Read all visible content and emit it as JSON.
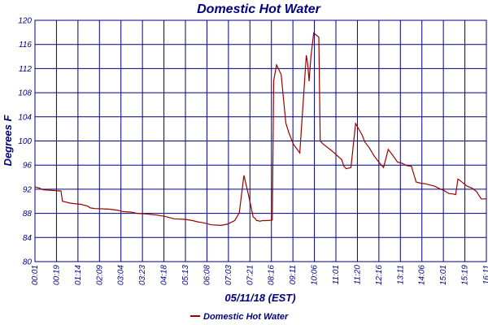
{
  "chart_data": {
    "type": "line",
    "title": "Domestic Hot Water",
    "xlabel": "05/11/18 (EST)",
    "ylabel": "Degrees F",
    "ylim": [
      80,
      120
    ],
    "yticks": [
      80,
      84,
      88,
      92,
      96,
      100,
      104,
      108,
      112,
      116,
      120
    ],
    "xlim": [
      1,
      971
    ],
    "xticks": [
      "00:01",
      "00:19",
      "01:14",
      "02:09",
      "03:04",
      "03:23",
      "04:18",
      "05:13",
      "06:08",
      "07:03",
      "07:21",
      "08:16",
      "09:11",
      "10:06",
      "11:01",
      "11:20",
      "12:16",
      "13:11",
      "14:06",
      "15:01",
      "15:19",
      "16:11"
    ],
    "grid": true,
    "legend": [
      "Domestic Hot Water"
    ],
    "line_color": "#990000",
    "series": [
      {
        "name": "Domestic Hot Water",
        "x": [
          1,
          10,
          19,
          40,
          57,
          60,
          66,
          76,
          100,
          114,
          120,
          130,
          160,
          180,
          190,
          209,
          220,
          240,
          264,
          280,
          290,
          300,
          324,
          340,
          350,
          358,
          370,
          380,
          400,
          414,
          430,
          440,
          450,
          460,
          470,
          474,
          477,
          480,
          484,
          490,
          500,
          511,
          514,
          520,
          530,
          540,
          546,
          549,
          556,
          570,
          584,
          587,
          590,
          594,
          600,
          611,
          614,
          620,
          640,
          660,
          665,
          670,
          680,
          690,
          704,
          710,
          720,
          730,
          740,
          750,
          760,
          770,
          780,
          790,
          800,
          810,
          820,
          830,
          840,
          850,
          860,
          870,
          880,
          890,
          900,
          905,
          910,
          920,
          930,
          940,
          950,
          960,
          971
        ],
        "values": [
          92.4,
          92.2,
          91.9,
          91.8,
          91.7,
          90.0,
          89.9,
          89.7,
          89.5,
          89.2,
          88.9,
          88.8,
          88.7,
          88.5,
          88.3,
          88.2,
          88.0,
          87.9,
          87.7,
          87.5,
          87.3,
          87.1,
          87.0,
          86.8,
          86.6,
          86.5,
          86.3,
          86.1,
          86.0,
          86.2,
          86.8,
          88.1,
          94.3,
          91.0,
          87.4,
          87.2,
          86.8,
          86.8,
          86.7,
          86.8,
          86.8,
          86.9,
          110.0,
          112.6,
          111.0,
          103.0,
          101.5,
          100.9,
          99.5,
          98.0,
          114.2,
          112.8,
          109.9,
          114.0,
          117.9,
          117.2,
          100.0,
          99.5,
          98.3,
          96.9,
          95.8,
          95.4,
          95.6,
          102.9,
          101.0,
          99.8,
          98.8,
          97.5,
          96.5,
          95.6,
          98.6,
          97.6,
          96.5,
          96.3,
          95.9,
          95.8,
          93.2,
          93.0,
          92.9,
          92.7,
          92.5,
          92.1,
          91.8,
          91.3,
          91.2,
          91.1,
          93.7,
          93.1,
          92.5,
          92.2,
          91.6,
          90.4,
          90.4
        ]
      }
    ]
  }
}
